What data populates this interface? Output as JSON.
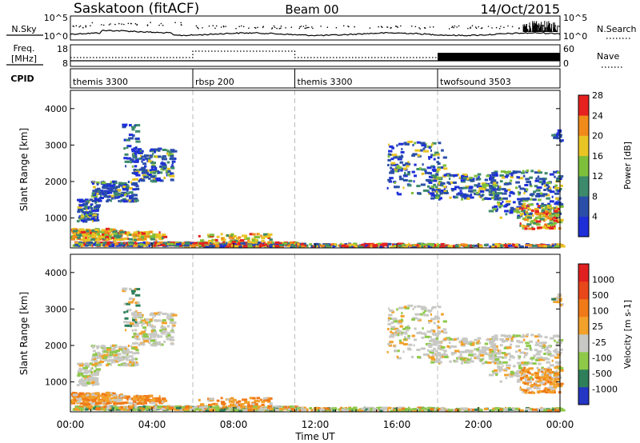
{
  "header": {
    "station": "Saskatoon (fitACF)",
    "beam": "Beam 00",
    "date": "14/Oct/2015"
  },
  "panels": {
    "nsky": {
      "left_label": "N.Sky",
      "right_label": "N.Search",
      "left_ticks": [
        "10^5",
        "10^0"
      ],
      "right_ticks": [
        "10^5",
        "10^0"
      ]
    },
    "freq": {
      "left_label_1": "Freq.",
      "left_label_2": "[MHz]",
      "right_label": "Nave",
      "left_ticks": [
        "18",
        "8"
      ],
      "right_ticks": [
        "60",
        "0"
      ]
    },
    "cpid": {
      "label": "CPID",
      "segments": [
        {
          "label": "themis 3300",
          "start_hour": 0,
          "end_hour": 6
        },
        {
          "label": "rbsp 200",
          "start_hour": 6,
          "end_hour": 11
        },
        {
          "label": "themis 3300",
          "start_hour": 11,
          "end_hour": 18
        },
        {
          "label": "twofsound 3503",
          "start_hour": 18,
          "end_hour": 24
        }
      ]
    }
  },
  "chart_data": [
    {
      "type": "heatmap",
      "name": "Power",
      "ylabel": "Slant Range [km]",
      "colorbar_label": "Power [dB]",
      "colorbar_ticks": [
        "4",
        "8",
        "12",
        "16",
        "20",
        "24",
        "28"
      ],
      "colors": [
        "#1e2fd8",
        "#2b4fa8",
        "#3d8a6c",
        "#7ebf3b",
        "#e8c424",
        "#f08a1a",
        "#e5221f"
      ],
      "yticks": [
        "1000",
        "2000",
        "3000",
        "4000"
      ],
      "ylim": [
        180,
        4500
      ]
    },
    {
      "type": "heatmap",
      "name": "Velocity",
      "ylabel": "Slant Range [km]",
      "colorbar_label": "Velocity [m s-1]",
      "colorbar_ticks": [
        "1000",
        "500",
        "100",
        "25",
        "-25",
        "-100",
        "-500",
        "-1000"
      ],
      "colors": [
        "#2436c4",
        "#2e7f5a",
        "#8ec94a",
        "#c8c8c4",
        "#f2a12a",
        "#f07a18",
        "#e8471a",
        "#e02020"
      ],
      "yticks": [
        "1000",
        "2000",
        "3000",
        "4000"
      ],
      "ylim": [
        180,
        4500
      ]
    }
  ],
  "time_axis": {
    "label": "Time UT",
    "ticks": [
      "00:00",
      "04:00",
      "08:00",
      "12:00",
      "16:00",
      "20:00",
      "00:00"
    ]
  }
}
